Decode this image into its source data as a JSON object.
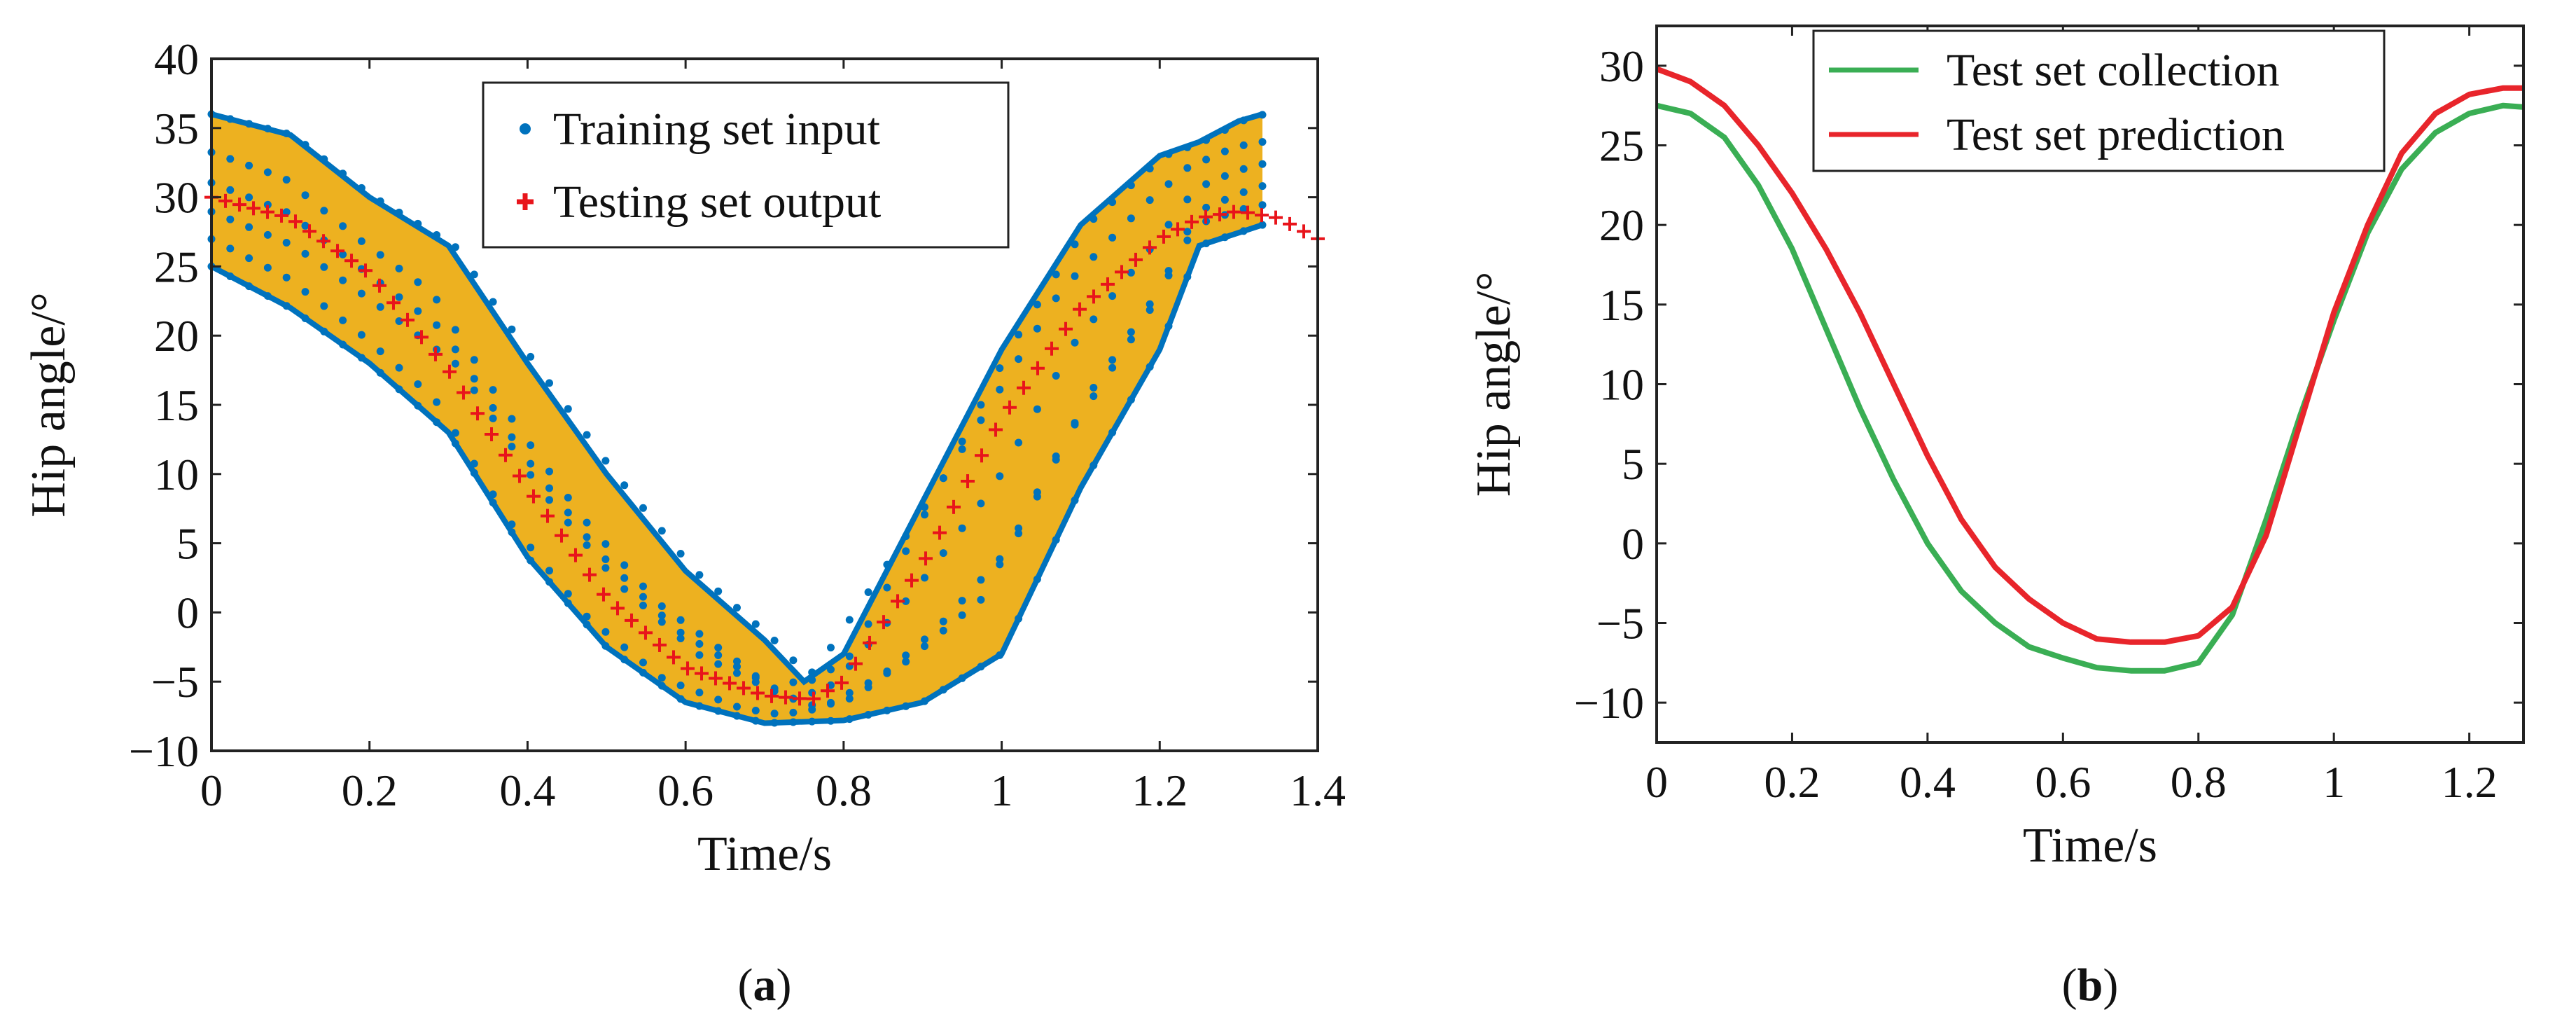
{
  "colors": {
    "band_fill": "#EDB120",
    "training": "#0072BD",
    "testing": "#E8141B",
    "test_collection": "#3AAE54",
    "test_prediction": "#E8252B",
    "axis": "#222222"
  },
  "chart_data": [
    {
      "panel": "a",
      "panel_label": "a",
      "type": "scatter",
      "title": "",
      "xlabel": "Time/s",
      "ylabel": "Hip angle/°",
      "xlim": [
        0,
        1.4
      ],
      "ylim": [
        -10,
        40
      ],
      "xticks": [
        0,
        0.2,
        0.4,
        0.6,
        0.8,
        1,
        1.2,
        1.4
      ],
      "xtick_labels": [
        "0",
        "0.2",
        "0.4",
        "0.6",
        "0.8",
        "1",
        "1.2",
        "1.4"
      ],
      "yticks": [
        -10,
        -5,
        0,
        5,
        10,
        15,
        20,
        25,
        30,
        35,
        40
      ],
      "ytick_labels": [
        "−10",
        "−5",
        "0",
        "5",
        "10",
        "15",
        "20",
        "25",
        "30",
        "35",
        "40"
      ],
      "legend": {
        "position": "top-center",
        "entries": [
          "Training set input",
          "Testing set output"
        ]
      },
      "band_upper": [
        [
          0,
          36
        ],
        [
          0.1,
          34.5
        ],
        [
          0.2,
          30
        ],
        [
          0.3,
          26.5
        ],
        [
          0.4,
          18
        ],
        [
          0.5,
          10
        ],
        [
          0.6,
          3
        ],
        [
          0.7,
          -2
        ],
        [
          0.75,
          -5
        ],
        [
          0.8,
          -3
        ],
        [
          0.9,
          8
        ],
        [
          1.0,
          19
        ],
        [
          1.1,
          28
        ],
        [
          1.2,
          33
        ],
        [
          1.25,
          34
        ],
        [
          1.3,
          35.5
        ],
        [
          1.33,
          36
        ]
      ],
      "band_lower": [
        [
          1.33,
          28
        ],
        [
          1.25,
          26.5
        ],
        [
          1.2,
          19
        ],
        [
          1.1,
          9
        ],
        [
          1.0,
          -3
        ],
        [
          0.9,
          -6.5
        ],
        [
          0.8,
          -7.8
        ],
        [
          0.7,
          -8
        ],
        [
          0.6,
          -6.5
        ],
        [
          0.5,
          -2.5
        ],
        [
          0.4,
          4
        ],
        [
          0.3,
          13
        ],
        [
          0.2,
          18
        ],
        [
          0.1,
          22
        ],
        [
          0,
          25
        ]
      ],
      "series": [
        {
          "name": "Training set input",
          "marker": "dot",
          "color": "#0072BD",
          "trace_points": 28,
          "shift": [
            0,
            0.1,
            -0.06,
            0.04,
            0.12,
            -0.04
          ]
        },
        {
          "name": "Testing set output",
          "marker": "plus",
          "color": "#E8141B",
          "x": [
            0,
            0.1,
            0.2,
            0.3,
            0.4,
            0.5,
            0.6,
            0.7,
            0.76,
            0.8,
            0.9,
            1.0,
            1.1,
            1.2,
            1.25,
            1.3,
            1.35,
            1.4
          ],
          "y": [
            30,
            28.5,
            24.5,
            17.5,
            9,
            1,
            -4,
            -6,
            -6.3,
            -5,
            3.5,
            14,
            22,
            27,
            28.5,
            29,
            28.5,
            27
          ]
        }
      ]
    },
    {
      "panel": "b",
      "panel_label": "b",
      "type": "line",
      "title": "",
      "xlabel": "Time/s",
      "ylabel": "Hip angle/°",
      "xlim": [
        0,
        1.28
      ],
      "ylim": [
        -12.5,
        32.5
      ],
      "xticks": [
        0,
        0.2,
        0.4,
        0.6,
        0.8,
        1,
        1.2
      ],
      "xtick_labels": [
        "0",
        "0.2",
        "0.4",
        "0.6",
        "0.8",
        "1",
        "1.2"
      ],
      "yticks": [
        -10,
        -5,
        0,
        5,
        10,
        15,
        20,
        25,
        30
      ],
      "ytick_labels": [
        "−10",
        "−5",
        "0",
        "5",
        "10",
        "15",
        "20",
        "25",
        "30"
      ],
      "legend": {
        "position": "top-center",
        "entries": [
          "Test set collection",
          "Test set prediction"
        ]
      },
      "series": [
        {
          "name": "Test set collection",
          "color": "#3AAE54",
          "x": [
            0,
            0.05,
            0.1,
            0.15,
            0.2,
            0.25,
            0.3,
            0.35,
            0.4,
            0.45,
            0.5,
            0.55,
            0.6,
            0.65,
            0.7,
            0.75,
            0.8,
            0.85,
            0.9,
            0.95,
            1.0,
            1.05,
            1.1,
            1.15,
            1.2,
            1.25,
            1.28
          ],
          "y": [
            27.5,
            27,
            25.5,
            22.5,
            18.5,
            13.5,
            8.5,
            4,
            0,
            -3,
            -5,
            -6.5,
            -7.2,
            -7.8,
            -8,
            -8,
            -7.5,
            -4.5,
            1.5,
            8,
            14,
            19.5,
            23.5,
            25.8,
            27,
            27.5,
            27.4
          ]
        },
        {
          "name": "Test set prediction",
          "color": "#E8252B",
          "x": [
            0,
            0.05,
            0.1,
            0.15,
            0.2,
            0.25,
            0.3,
            0.35,
            0.4,
            0.45,
            0.5,
            0.55,
            0.6,
            0.65,
            0.7,
            0.75,
            0.8,
            0.85,
            0.9,
            0.95,
            1.0,
            1.05,
            1.1,
            1.15,
            1.2,
            1.25,
            1.28
          ],
          "y": [
            29.8,
            29,
            27.5,
            25,
            22,
            18.5,
            14.5,
            10,
            5.5,
            1.5,
            -1.5,
            -3.5,
            -5,
            -6,
            -6.2,
            -6.2,
            -5.8,
            -4,
            0.5,
            7.5,
            14.5,
            20,
            24.5,
            27,
            28.2,
            28.6,
            28.6
          ]
        }
      ]
    }
  ]
}
